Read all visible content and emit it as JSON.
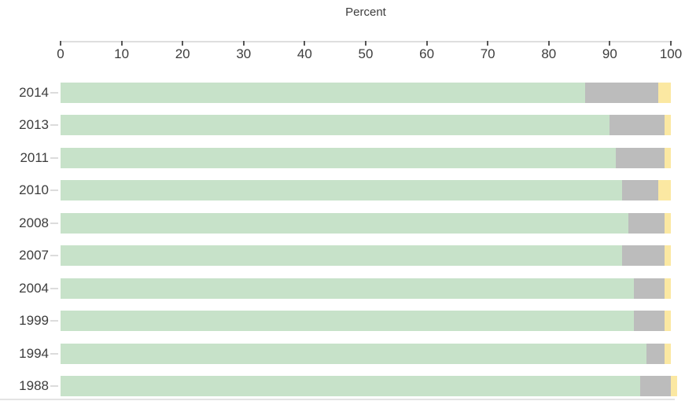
{
  "chart_data": {
    "type": "bar",
    "orientation": "horizontal",
    "stacked": true,
    "title": "",
    "xlabel": "Percent",
    "ylabel": "",
    "xlim": [
      0,
      100
    ],
    "x_ticks": [
      0,
      10,
      20,
      30,
      40,
      50,
      60,
      70,
      80,
      90,
      100
    ],
    "grid": false,
    "legend": "none",
    "categories": [
      "2014",
      "2013",
      "2011",
      "2010",
      "2008",
      "2007",
      "2004",
      "1999",
      "1994",
      "1988"
    ],
    "series": [
      {
        "name": "segment-green",
        "color": "#c7e2c9",
        "values": [
          86,
          90,
          91,
          92,
          93,
          92,
          94,
          94,
          96,
          95
        ]
      },
      {
        "name": "segment-gray",
        "color": "#bcbcbc",
        "values": [
          12,
          9,
          8,
          6,
          6,
          7,
          5,
          5,
          3,
          5
        ]
      },
      {
        "name": "segment-yellow",
        "color": "#fbe8a2",
        "values": [
          2,
          1,
          1,
          2,
          1,
          1,
          1,
          1,
          1,
          1
        ]
      }
    ],
    "colors": {
      "axis_line": "#dedede",
      "tick_mark": "#565656",
      "text": "#3d3d3d",
      "y_tick_dash": "#dcdcdc",
      "background": "#ffffff"
    }
  }
}
